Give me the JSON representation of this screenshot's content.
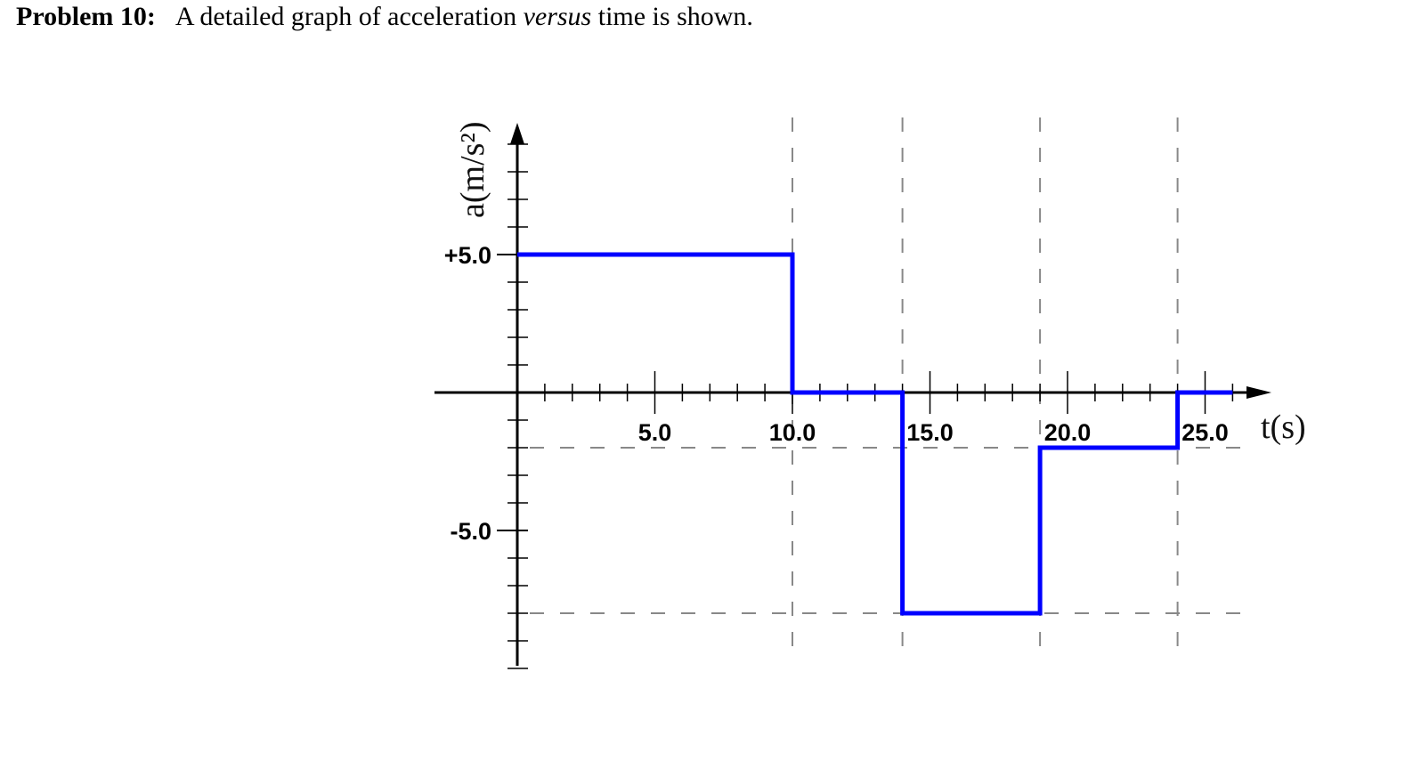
{
  "problem": {
    "label": "Problem 10:",
    "desc_before": "A detailed graph of acceleration ",
    "desc_emph": "versus",
    "desc_after": " time is shown."
  },
  "colors": {
    "series": "#0000ff",
    "axis": "#000000",
    "guide": "#888888"
  },
  "chart_data": {
    "type": "line",
    "xlabel": "t(s)",
    "ylabel": "a(m/s²)",
    "xlim": [
      0,
      26
    ],
    "ylim": [
      -10,
      9.5
    ],
    "grid": false,
    "x_ticks": [
      5,
      10,
      15,
      20,
      25
    ],
    "x_tick_labels": [
      "5.0",
      "10.0",
      "15.0",
      "20.0",
      "25.0"
    ],
    "y_ticks": [
      5,
      -5
    ],
    "y_tick_labels": [
      "+5.0",
      "-5.0"
    ],
    "x_minor_step": 1,
    "y_minor_step": 1,
    "dashed_guides": {
      "vertical_x": [
        10,
        14,
        19,
        24
      ],
      "horizontal_y": [
        -2,
        -8
      ]
    },
    "series": [
      {
        "points": [
          [
            0,
            5
          ],
          [
            10,
            5
          ],
          [
            10,
            0
          ],
          [
            14,
            0
          ],
          [
            14,
            -8
          ],
          [
            19,
            -8
          ],
          [
            19,
            -2
          ],
          [
            24,
            -2
          ],
          [
            24,
            0
          ],
          [
            26,
            0
          ]
        ]
      }
    ]
  }
}
